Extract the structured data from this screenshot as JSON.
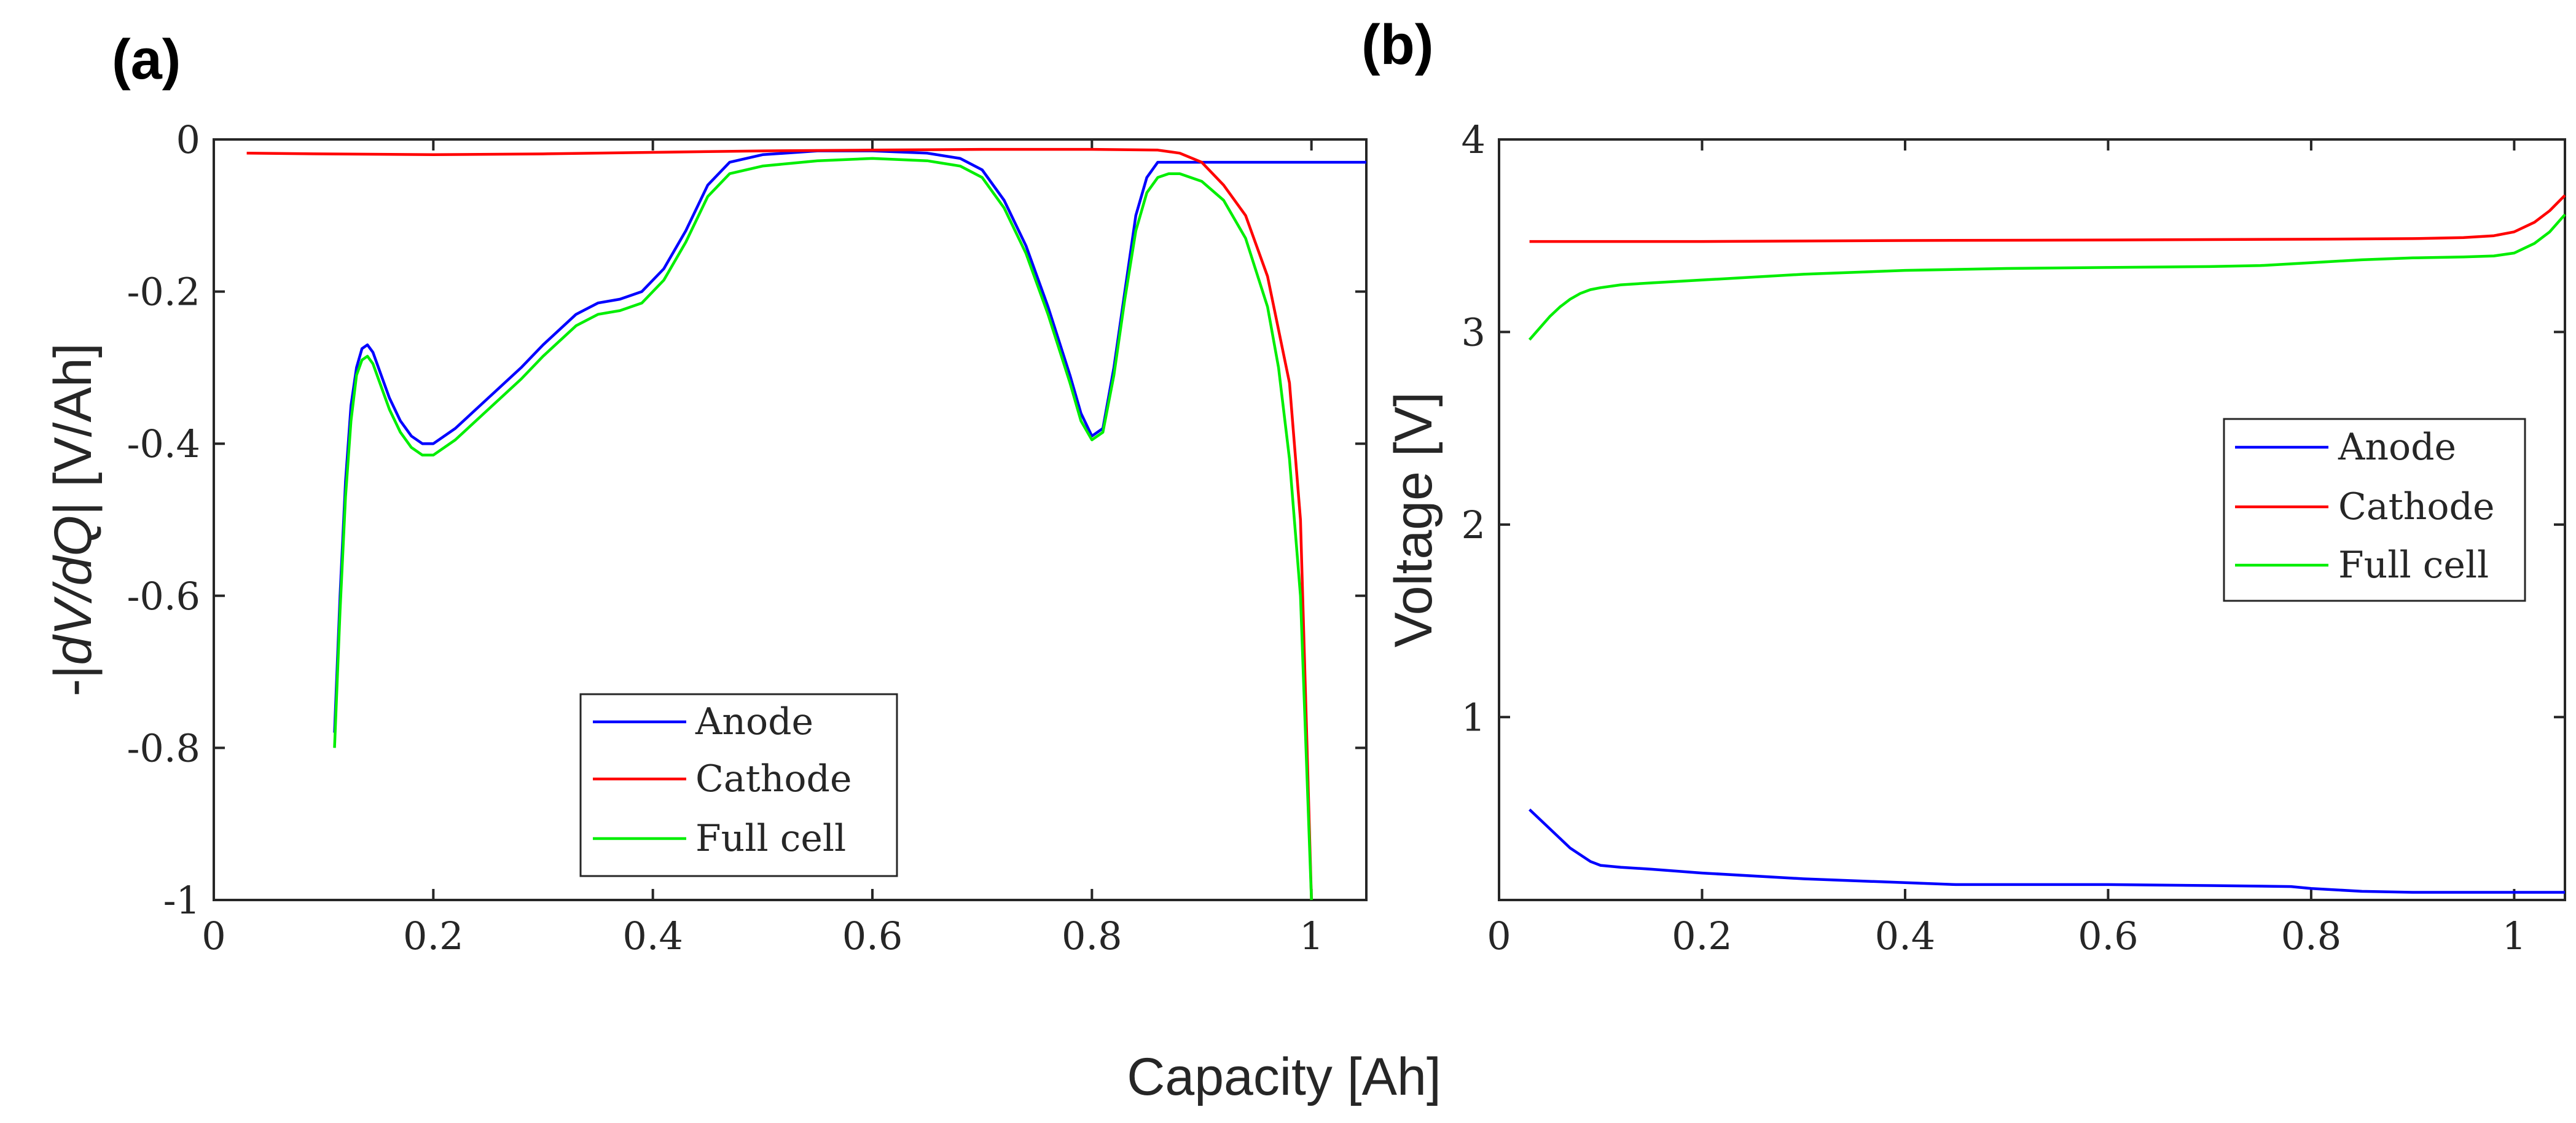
{
  "shared_xlabel": "Capacity [Ah]",
  "chart_data": [
    {
      "type": "line",
      "panel_label": "(a)",
      "title": "",
      "xlabel": "Capacity [Ah]",
      "ylabel": "-|dV/dQ| [V/Ah]",
      "ylabel_parts": [
        "-|",
        "dV/dQ",
        "| [V/Ah]"
      ],
      "xlim": [
        0,
        1.05
      ],
      "ylim": [
        -1,
        0
      ],
      "xticks": [
        0,
        0.2,
        0.4,
        0.6,
        0.8,
        1
      ],
      "xtick_labels": [
        "0",
        "0.2",
        "0.4",
        "0.6",
        "0.8",
        "1"
      ],
      "yticks": [
        0,
        -0.2,
        -0.4,
        -0.6,
        -0.8,
        -1
      ],
      "ytick_labels": [
        "0",
        "-0.2",
        "-0.4",
        "-0.6",
        "-0.8",
        "-1"
      ],
      "legend_position": "lower-center",
      "series": [
        {
          "name": "Anode",
          "color": "#0000ff",
          "x": [
            0.11,
            0.115,
            0.12,
            0.125,
            0.13,
            0.135,
            0.14,
            0.145,
            0.15,
            0.16,
            0.17,
            0.18,
            0.19,
            0.2,
            0.22,
            0.25,
            0.28,
            0.3,
            0.33,
            0.35,
            0.37,
            0.39,
            0.41,
            0.43,
            0.45,
            0.47,
            0.5,
            0.55,
            0.6,
            0.65,
            0.68,
            0.7,
            0.72,
            0.74,
            0.76,
            0.78,
            0.79,
            0.8,
            0.81,
            0.82,
            0.83,
            0.84,
            0.85,
            0.86,
            0.87,
            0.88,
            0.9,
            0.92,
            0.95,
            0.98,
            1.0,
            1.03,
            1.05
          ],
          "y": [
            -0.78,
            -0.6,
            -0.45,
            -0.35,
            -0.3,
            -0.275,
            -0.27,
            -0.28,
            -0.3,
            -0.34,
            -0.37,
            -0.39,
            -0.4,
            -0.4,
            -0.38,
            -0.34,
            -0.3,
            -0.27,
            -0.23,
            -0.215,
            -0.21,
            -0.2,
            -0.17,
            -0.12,
            -0.06,
            -0.03,
            -0.02,
            -0.015,
            -0.015,
            -0.018,
            -0.025,
            -0.04,
            -0.08,
            -0.14,
            -0.22,
            -0.31,
            -0.36,
            -0.39,
            -0.38,
            -0.3,
            -0.2,
            -0.1,
            -0.05,
            -0.03,
            -0.03,
            -0.03,
            -0.03,
            -0.03,
            -0.03,
            -0.03,
            -0.03,
            -0.03,
            -0.03
          ]
        },
        {
          "name": "Cathode",
          "color": "#ff0000",
          "x": [
            0.03,
            0.1,
            0.2,
            0.3,
            0.4,
            0.5,
            0.6,
            0.7,
            0.8,
            0.86,
            0.88,
            0.9,
            0.92,
            0.94,
            0.96,
            0.98,
            0.99,
            1.0
          ],
          "y": [
            -0.018,
            -0.019,
            -0.02,
            -0.019,
            -0.017,
            -0.015,
            -0.014,
            -0.013,
            -0.013,
            -0.014,
            -0.018,
            -0.03,
            -0.06,
            -0.1,
            -0.18,
            -0.32,
            -0.5,
            -1.0
          ]
        },
        {
          "name": "Full cell",
          "color": "#00ee00",
          "x": [
            0.11,
            0.115,
            0.12,
            0.125,
            0.13,
            0.135,
            0.14,
            0.145,
            0.15,
            0.16,
            0.17,
            0.18,
            0.19,
            0.2,
            0.22,
            0.25,
            0.28,
            0.3,
            0.33,
            0.35,
            0.37,
            0.39,
            0.41,
            0.43,
            0.45,
            0.47,
            0.5,
            0.55,
            0.6,
            0.65,
            0.68,
            0.7,
            0.72,
            0.74,
            0.76,
            0.78,
            0.79,
            0.8,
            0.81,
            0.82,
            0.83,
            0.84,
            0.85,
            0.86,
            0.87,
            0.88,
            0.9,
            0.92,
            0.94,
            0.96,
            0.97,
            0.98,
            0.99,
            1.0
          ],
          "y": [
            -0.8,
            -0.62,
            -0.47,
            -0.37,
            -0.31,
            -0.29,
            -0.285,
            -0.295,
            -0.315,
            -0.355,
            -0.385,
            -0.405,
            -0.415,
            -0.415,
            -0.395,
            -0.355,
            -0.315,
            -0.285,
            -0.245,
            -0.23,
            -0.225,
            -0.215,
            -0.185,
            -0.135,
            -0.075,
            -0.045,
            -0.035,
            -0.028,
            -0.025,
            -0.028,
            -0.035,
            -0.05,
            -0.09,
            -0.15,
            -0.23,
            -0.32,
            -0.37,
            -0.395,
            -0.385,
            -0.31,
            -0.21,
            -0.12,
            -0.07,
            -0.05,
            -0.045,
            -0.045,
            -0.055,
            -0.08,
            -0.13,
            -0.22,
            -0.3,
            -0.42,
            -0.6,
            -1.0
          ]
        }
      ]
    },
    {
      "type": "line",
      "panel_label": "(b)",
      "title": "",
      "xlabel": "Capacity [Ah]",
      "ylabel": "Voltage [V]",
      "xlim": [
        0,
        1.05
      ],
      "ylim": [
        0.05,
        4
      ],
      "xticks": [
        0,
        0.2,
        0.4,
        0.6,
        0.8,
        1
      ],
      "xtick_labels": [
        "0",
        "0.2",
        "0.4",
        "0.6",
        "0.8",
        "1"
      ],
      "yticks": [
        1,
        2,
        3,
        4
      ],
      "ytick_labels": [
        "1",
        "2",
        "3",
        "4"
      ],
      "legend_position": "right",
      "series": [
        {
          "name": "Anode",
          "color": "#0000ff",
          "x": [
            0.03,
            0.05,
            0.07,
            0.09,
            0.1,
            0.12,
            0.15,
            0.2,
            0.3,
            0.4,
            0.45,
            0.5,
            0.6,
            0.7,
            0.78,
            0.8,
            0.85,
            0.9,
            1.0,
            1.05
          ],
          "y": [
            0.52,
            0.42,
            0.32,
            0.25,
            0.23,
            0.22,
            0.21,
            0.19,
            0.16,
            0.14,
            0.13,
            0.13,
            0.13,
            0.125,
            0.12,
            0.11,
            0.095,
            0.09,
            0.09,
            0.09
          ]
        },
        {
          "name": "Cathode",
          "color": "#ff0000",
          "x": [
            0.03,
            0.2,
            0.4,
            0.6,
            0.8,
            0.9,
            0.95,
            0.98,
            1.0,
            1.02,
            1.035,
            1.05
          ],
          "y": [
            3.47,
            3.47,
            3.475,
            3.478,
            3.482,
            3.485,
            3.49,
            3.5,
            3.52,
            3.57,
            3.63,
            3.71
          ]
        },
        {
          "name": "Full cell",
          "color": "#00ee00",
          "x": [
            0.03,
            0.04,
            0.05,
            0.06,
            0.07,
            0.08,
            0.09,
            0.1,
            0.12,
            0.15,
            0.2,
            0.3,
            0.4,
            0.5,
            0.6,
            0.7,
            0.75,
            0.8,
            0.85,
            0.9,
            0.95,
            0.98,
            1.0,
            1.02,
            1.035,
            1.05
          ],
          "y": [
            2.96,
            3.02,
            3.08,
            3.13,
            3.17,
            3.2,
            3.22,
            3.23,
            3.245,
            3.255,
            3.27,
            3.3,
            3.32,
            3.33,
            3.335,
            3.34,
            3.345,
            3.36,
            3.375,
            3.385,
            3.39,
            3.395,
            3.41,
            3.46,
            3.52,
            3.61
          ]
        }
      ]
    }
  ]
}
